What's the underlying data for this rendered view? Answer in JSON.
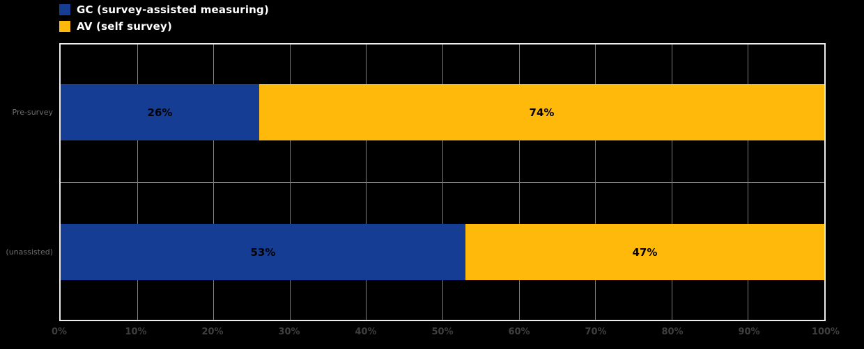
{
  "chart_data": {
    "type": "bar",
    "orientation": "horizontal",
    "stacked": true,
    "title": "",
    "categories": [
      "Pre-survey",
      "(unassisted)"
    ],
    "series": [
      {
        "name": "GC (survey-assisted measuring)",
        "color": "#163D94",
        "values": [
          26,
          53
        ]
      },
      {
        "name": "AV (self survey)",
        "color": "#FFB90A",
        "values": [
          74,
          47
        ]
      }
    ],
    "data_labels": [
      [
        "26%",
        "74%"
      ],
      [
        "53%",
        "47%"
      ]
    ],
    "x_ticks": [
      "0%",
      "10%",
      "20%",
      "30%",
      "40%",
      "50%",
      "60%",
      "70%",
      "80%",
      "90%",
      "100%"
    ],
    "xlim": [
      0,
      100
    ],
    "grid": true,
    "legend_position": "top-left"
  },
  "colors": {
    "background": "#000000",
    "plot_border": "#EDEDED",
    "gridline": "#7D7D7D",
    "bar_label_text": "#000000",
    "legend_text": "#FFFFFF",
    "axis_tick_text": "#3F3F3F",
    "category_text": "#6F6F6F"
  }
}
